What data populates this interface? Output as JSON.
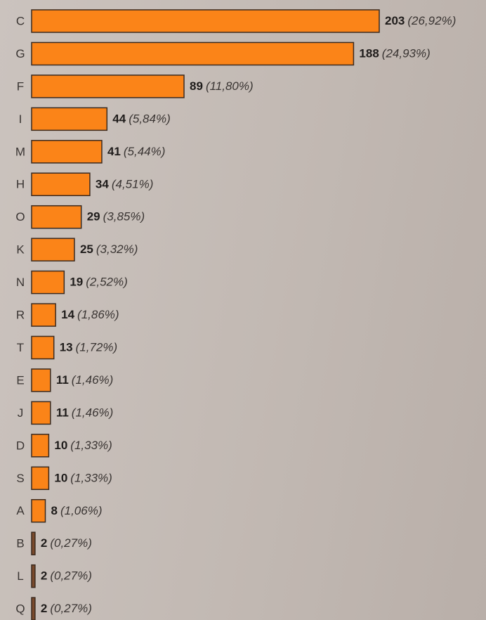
{
  "chart_data": {
    "type": "hbar",
    "categories": [
      "C",
      "G",
      "F",
      "I",
      "M",
      "H",
      "O",
      "K",
      "N",
      "R",
      "T",
      "E",
      "J",
      "D",
      "S",
      "A",
      "B",
      "L",
      "Q"
    ],
    "values": [
      203,
      188,
      89,
      44,
      41,
      34,
      29,
      25,
      19,
      14,
      13,
      11,
      11,
      10,
      10,
      8,
      2,
      2,
      2
    ],
    "shares": [
      26.92,
      24.93,
      11.8,
      5.84,
      5.44,
      4.51,
      3.85,
      3.32,
      2.52,
      1.86,
      1.72,
      1.46,
      1.46,
      1.33,
      1.33,
      1.06,
      0.27,
      0.27,
      0.27
    ],
    "share_labels": [
      "(26,92%)",
      "(24,93%)",
      "(11,80%)",
      "(5,84%)",
      "(5,44%)",
      "(4,51%)",
      "(3,85%)",
      "(3,32%)",
      "(2,52%)",
      "(1,86%)",
      "(1,72%)",
      "(1,46%)",
      "(1,46%)",
      "(1,33%)",
      "(1,33%)",
      "(1,06%)",
      "(0,27%)",
      "(0,27%)",
      "(0,27%)"
    ],
    "color": "#fb8418",
    "edge_color": "#3b2a1f"
  }
}
